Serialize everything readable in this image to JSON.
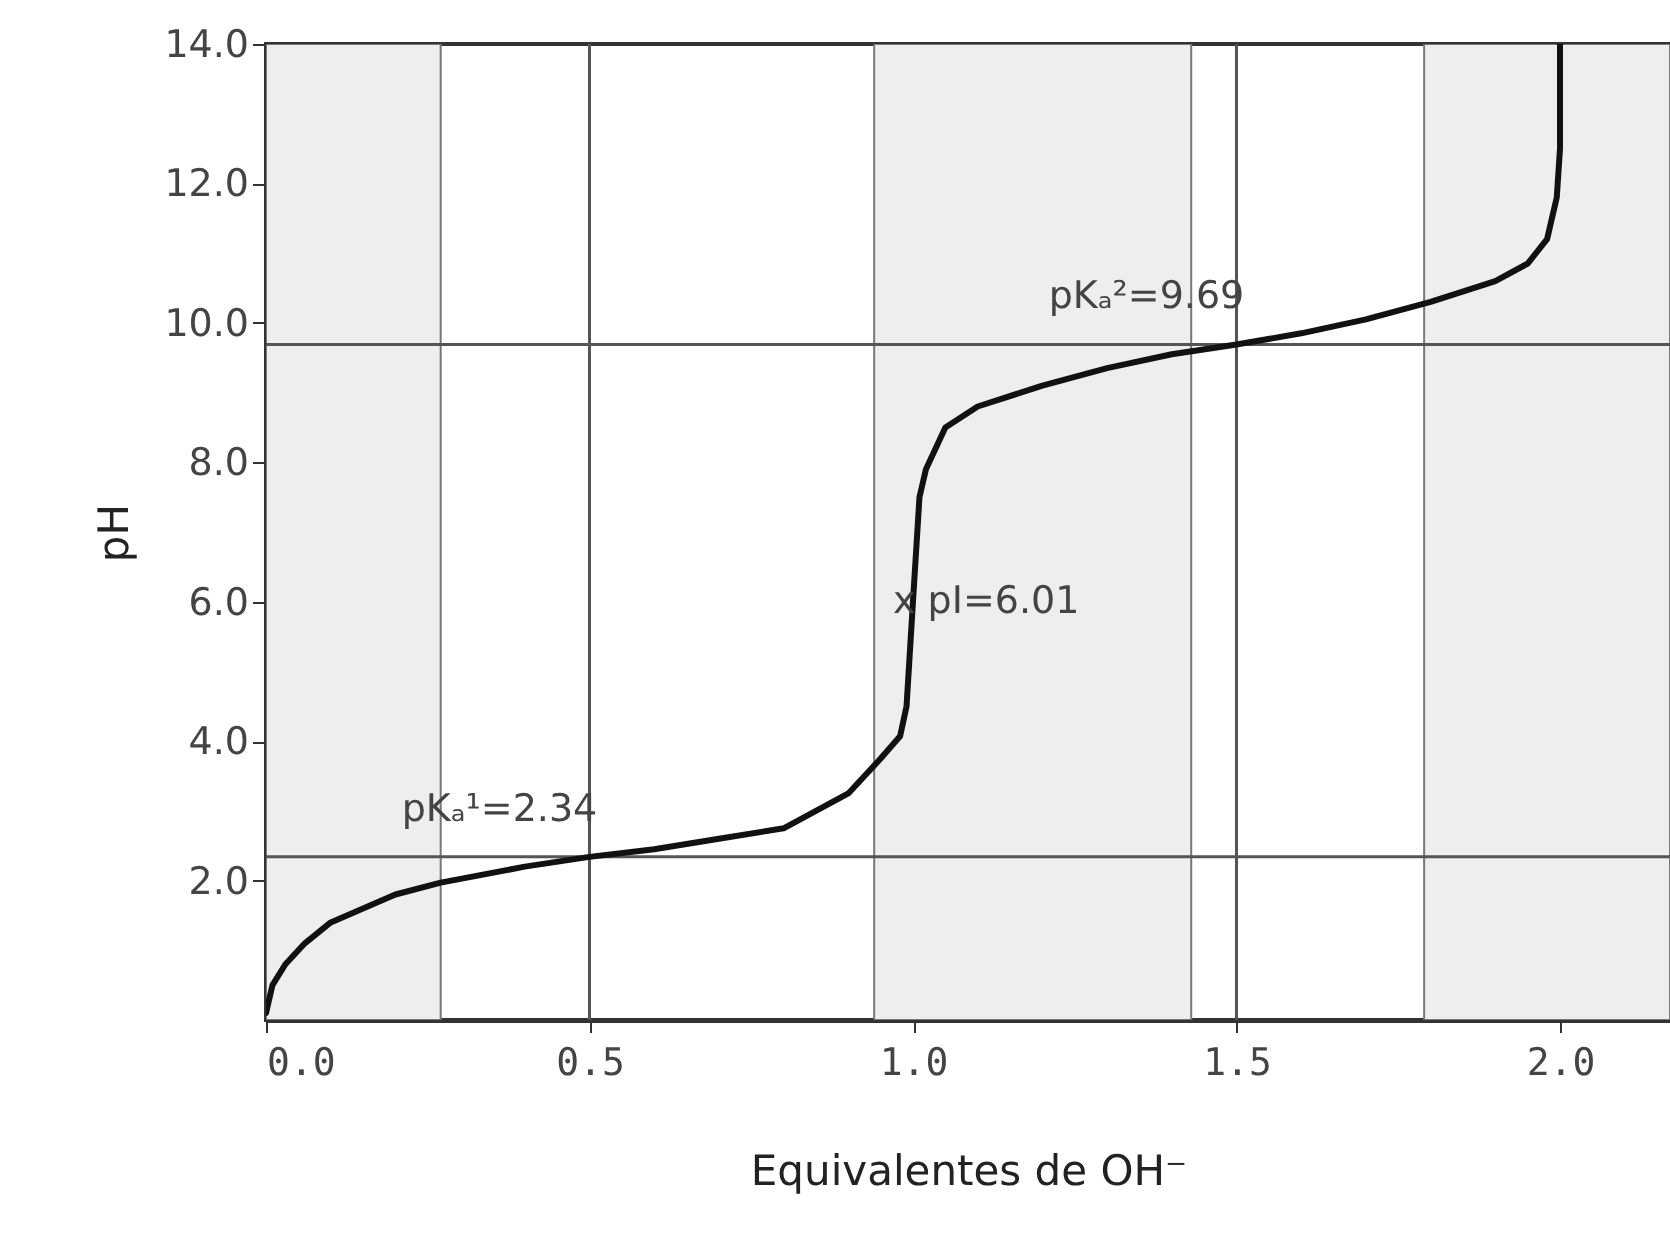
{
  "chart_data": {
    "type": "line",
    "xlabel": "Equivalentes de OH⁻",
    "ylabel": "pH",
    "xlim": [
      0,
      2.17
    ],
    "ylim": [
      0,
      14
    ],
    "xticks": [
      {
        "value": 0,
        "label": "0.0"
      },
      {
        "value": 0.5,
        "label": "0.5"
      },
      {
        "value": 1,
        "label": "1.0"
      },
      {
        "value": 1.5,
        "label": "1.5"
      },
      {
        "value": 2,
        "label": "2.0"
      }
    ],
    "yticks": [
      {
        "value": 2,
        "label": "2.0"
      },
      {
        "value": 4,
        "label": "4.0"
      },
      {
        "value": 6,
        "label": "6.0"
      },
      {
        "value": 8,
        "label": "8.0"
      },
      {
        "value": 10,
        "label": "10.0"
      },
      {
        "value": 12,
        "label": "12.0"
      },
      {
        "value": 14,
        "label": "14.0"
      }
    ],
    "grid": false,
    "marker": "none",
    "line_style": "solid",
    "series": [
      {
        "color": "#111111",
        "x": [
          0,
          0.01,
          0.03,
          0.06,
          0.1,
          0.2,
          0.27,
          0.4,
          0.5,
          0.6,
          0.7,
          0.8,
          0.9,
          0.95,
          0.98,
          0.99,
          1.0,
          1.01,
          1.02,
          1.05,
          1.1,
          1.2,
          1.3,
          1.4,
          1.5,
          1.6,
          1.7,
          1.8,
          1.9,
          1.95,
          1.98,
          1.995,
          2.0,
          2.0
        ],
        "values": [
          0.1,
          0.5,
          0.8,
          1.1,
          1.4,
          1.8,
          1.97,
          2.2,
          2.34,
          2.45,
          2.6,
          2.75,
          3.25,
          3.75,
          4.07,
          4.5,
          6.01,
          7.5,
          7.9,
          8.5,
          8.8,
          9.1,
          9.35,
          9.55,
          9.69,
          9.85,
          10.05,
          10.3,
          10.6,
          10.85,
          11.2,
          11.8,
          12.5,
          14
        ]
      }
    ],
    "ref_lines": [
      {
        "axis": "y",
        "value": 9.69,
        "color": "#555555"
      },
      {
        "axis": "y",
        "value": 2.34,
        "color": "#555555"
      },
      {
        "axis": "x",
        "value": 0.5,
        "color": "#555555"
      },
      {
        "axis": "x",
        "value": 1.5,
        "color": "#555555"
      }
    ],
    "bands": [
      {
        "axis": "x",
        "from": 0,
        "to": 0.27,
        "color": "#eeeeee"
      },
      {
        "axis": "x",
        "from": 0.94,
        "to": 1.43,
        "color": "#eeeeee"
      },
      {
        "axis": "x",
        "from": 1.79,
        "to": 2.17,
        "color": "#eeeeee"
      }
    ],
    "annotations": [
      {
        "text": "pKₐ¹=2.34",
        "x": 0.5,
        "y": 2.34
      },
      {
        "text": "x pI=6.01",
        "x": 1.0,
        "y": 6.01
      },
      {
        "text": "pKₐ²=9.69",
        "x": 1.5,
        "y": 9.69
      }
    ]
  }
}
